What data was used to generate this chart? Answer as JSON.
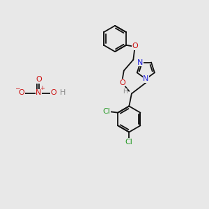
{
  "bg_color": "#e8e8e8",
  "bond_color": "#111111",
  "bond_lw": 1.3,
  "colors": {
    "N": "#2222dd",
    "O": "#cc1111",
    "Cl": "#229922",
    "H": "#888888",
    "C": "#111111"
  },
  "fs": 8.0,
  "fs_small": 6.5
}
